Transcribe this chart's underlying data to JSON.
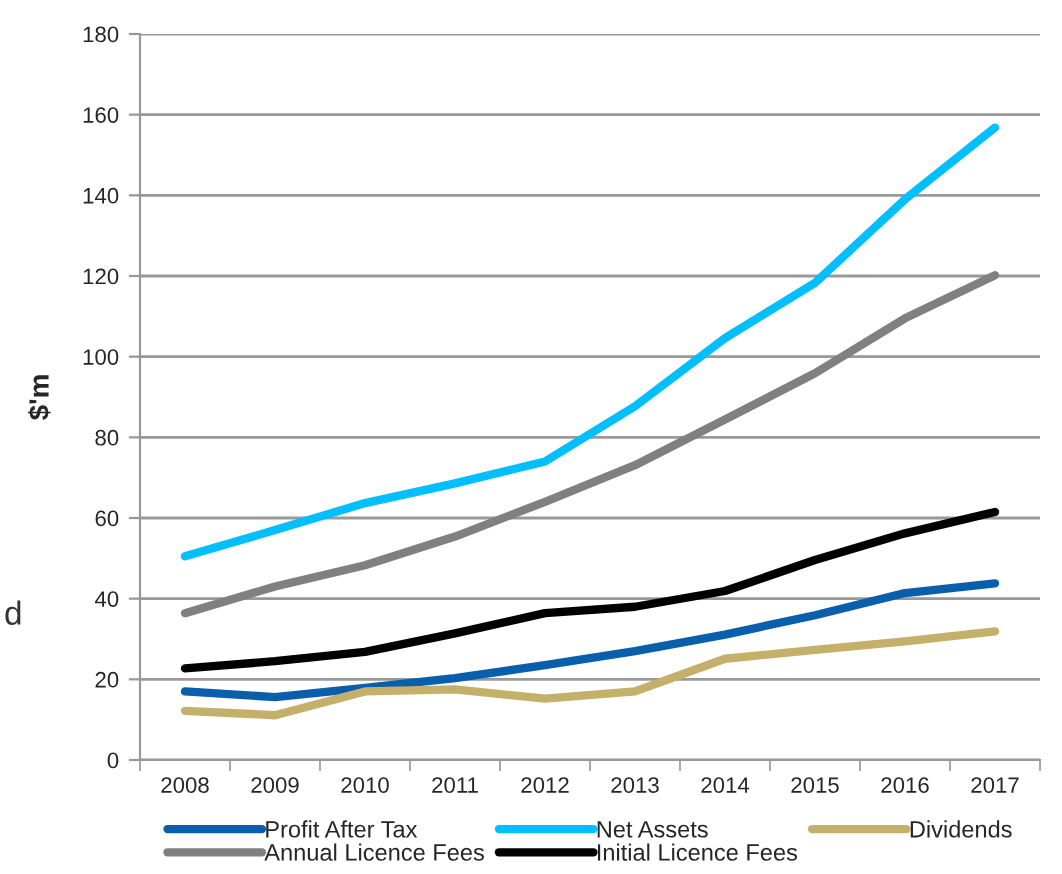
{
  "chart_data": {
    "type": "line",
    "ylabel": "$'m",
    "categories": [
      "2008",
      "2009",
      "2010",
      "2011",
      "2012",
      "2013",
      "2014",
      "2015",
      "2016",
      "2017"
    ],
    "series": [
      {
        "name": "Profit After Tax",
        "color": "#0a5fad",
        "values": [
          17,
          15.6,
          17.9,
          20.3,
          23.5,
          27,
          31.1,
          35.9,
          41.4,
          43.8
        ]
      },
      {
        "name": "Annual Licence Fees",
        "color": "#808080",
        "values": [
          36.4,
          43,
          48.3,
          55.4,
          64,
          73.1,
          84.4,
          95.9,
          109.5,
          120.2
        ]
      },
      {
        "name": "Net Assets",
        "color": "#00bfff",
        "values": [
          50.5,
          57,
          63.7,
          68.6,
          74,
          87.7,
          104.6,
          118.3,
          139,
          156.8
        ]
      },
      {
        "name": "Initial Licence Fees",
        "color": "#000000",
        "values": [
          22.7,
          24.5,
          26.8,
          31.4,
          36.4,
          38,
          41.9,
          49.6,
          56.2,
          61.5
        ]
      },
      {
        "name": "Dividends",
        "color": "#c4b06a",
        "values": [
          12.2,
          11.1,
          17,
          17.5,
          15.2,
          17,
          25.1,
          27.3,
          29.4,
          31.9
        ]
      }
    ],
    "ylim": [
      0,
      180
    ],
    "yticks": [
      0,
      20,
      40,
      60,
      80,
      100,
      120,
      140,
      160,
      180
    ],
    "grid": "y",
    "legend": "bottom",
    "marker": "none",
    "line_style": "solid",
    "annotations": [
      "d"
    ]
  }
}
